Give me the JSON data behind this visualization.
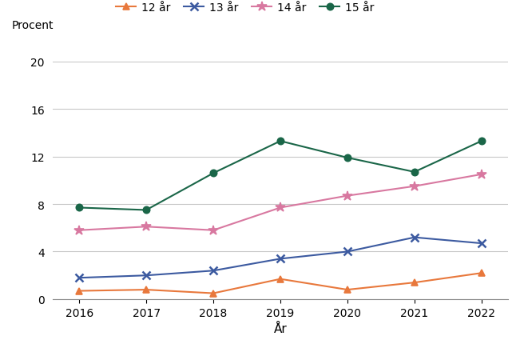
{
  "years": [
    2016,
    2017,
    2018,
    2019,
    2020,
    2021,
    2022
  ],
  "series": {
    "12 år": {
      "values": [
        0.7,
        0.8,
        0.5,
        1.7,
        0.8,
        1.4,
        2.2
      ],
      "color": "#e8783c",
      "marker": "^",
      "linestyle": "-"
    },
    "13 år": {
      "values": [
        1.8,
        2.0,
        2.4,
        3.4,
        4.0,
        5.2,
        4.7
      ],
      "color": "#3c5aa0",
      "marker": "x",
      "linestyle": "-"
    },
    "14 år": {
      "values": [
        5.8,
        6.1,
        5.8,
        7.7,
        8.7,
        9.5,
        10.5
      ],
      "color": "#d878a0",
      "marker": "*",
      "linestyle": "-"
    },
    "15 år": {
      "values": [
        7.7,
        7.5,
        10.6,
        13.3,
        11.9,
        10.7,
        13.3
      ],
      "color": "#1a6648",
      "marker": "o",
      "linestyle": "-"
    }
  },
  "xlabel": "År",
  "ylabel": "Procent",
  "ylim": [
    0,
    20
  ],
  "yticks": [
    0,
    4,
    8,
    12,
    16,
    20
  ],
  "xticks": [
    2016,
    2017,
    2018,
    2019,
    2020,
    2021,
    2022
  ],
  "background_color": "#ffffff",
  "grid_color": "#c8c8c8",
  "legend_order": [
    "12 år",
    "13 år",
    "14 år",
    "15 år"
  ]
}
